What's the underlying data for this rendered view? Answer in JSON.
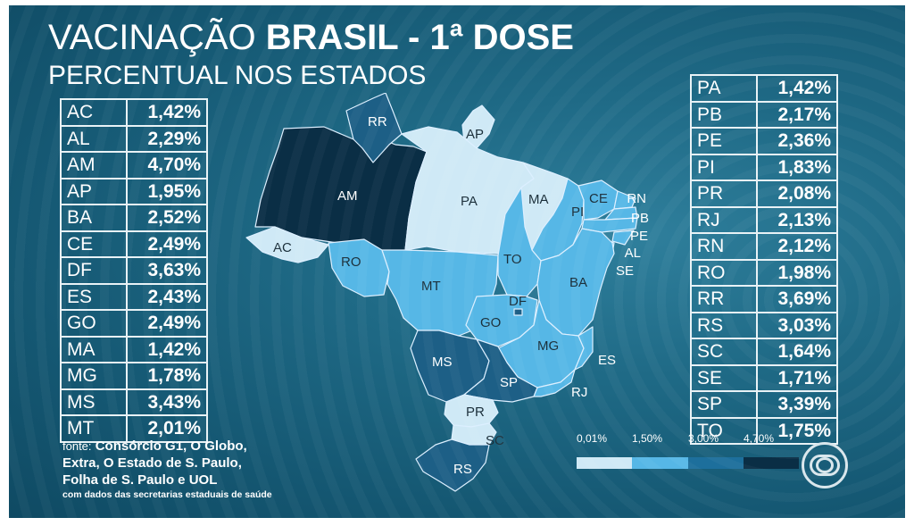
{
  "header": {
    "title_regular": "VACINAÇÃO ",
    "title_bold": "BRASIL - 1ª DOSE",
    "subtitle": "PERCENTUAL NOS ESTADOS"
  },
  "left_table": [
    {
      "state": "AC",
      "value": "1,42%"
    },
    {
      "state": "AL",
      "value": "2,29%"
    },
    {
      "state": "AM",
      "value": "4,70%"
    },
    {
      "state": "AP",
      "value": "1,95%"
    },
    {
      "state": "BA",
      "value": "2,52%"
    },
    {
      "state": "CE",
      "value": "2,49%"
    },
    {
      "state": "DF",
      "value": "3,63%"
    },
    {
      "state": "ES",
      "value": "2,43%"
    },
    {
      "state": "GO",
      "value": "2,49%"
    },
    {
      "state": "MA",
      "value": "1,42%"
    },
    {
      "state": "MG",
      "value": "1,78%"
    },
    {
      "state": "MS",
      "value": "3,43%"
    },
    {
      "state": "MT",
      "value": "2,01%"
    }
  ],
  "right_table": [
    {
      "state": "PA",
      "value": "1,42%"
    },
    {
      "state": "PB",
      "value": "2,17%"
    },
    {
      "state": "PE",
      "value": "2,36%"
    },
    {
      "state": "PI",
      "value": "1,83%"
    },
    {
      "state": "PR",
      "value": "2,08%"
    },
    {
      "state": "RJ",
      "value": "2,13%"
    },
    {
      "state": "RN",
      "value": "2,12%"
    },
    {
      "state": "RO",
      "value": "1,98%"
    },
    {
      "state": "RR",
      "value": "3,69%"
    },
    {
      "state": "RS",
      "value": "3,03%"
    },
    {
      "state": "SC",
      "value": "1,64%"
    },
    {
      "state": "SE",
      "value": "1,71%"
    },
    {
      "state": "SP",
      "value": "3,39%"
    },
    {
      "state": "TO",
      "value": "1,75%"
    }
  ],
  "map_labels": {
    "RR": "RR",
    "AP": "AP",
    "AM": "AM",
    "PA": "PA",
    "MA": "MA",
    "CE": "CE",
    "RN": "RN",
    "PB": "PB",
    "PE": "PE",
    "AL": "AL",
    "SE": "SE",
    "PI": "PI",
    "AC": "AC",
    "RO": "RO",
    "TO": "TO",
    "MT": "MT",
    "BA": "BA",
    "DF": "DF",
    "GO": "GO",
    "MG": "MG",
    "ES": "ES",
    "MS": "MS",
    "SP": "SP",
    "RJ": "RJ",
    "PR": "PR",
    "SC": "SC",
    "RS": "RS"
  },
  "source": {
    "label": "fonte:",
    "line1": "Consórcio G1, O Globo,",
    "line2": "Extra, O Estado de S. Paulo,",
    "line3": "Folha de S. Paulo e UOL",
    "note": "com dados das secretarias estaduais de saúde"
  },
  "legend": {
    "ticks": [
      "0,01%",
      "1,50%",
      "3,00%",
      "4,70%"
    ],
    "colors": [
      "#cfe9f6",
      "#56b7e6",
      "#1d6f9c",
      "#0a2e45"
    ]
  },
  "colors": {
    "light": "#cfe9f6",
    "mid": "#56b7e6",
    "darkmid": "#2a7fae",
    "dark": "#1d5f86",
    "darkest": "#0a2e45",
    "frame": "#1f6a86"
  },
  "logo": {
    "icon": "globo-logo-icon"
  }
}
